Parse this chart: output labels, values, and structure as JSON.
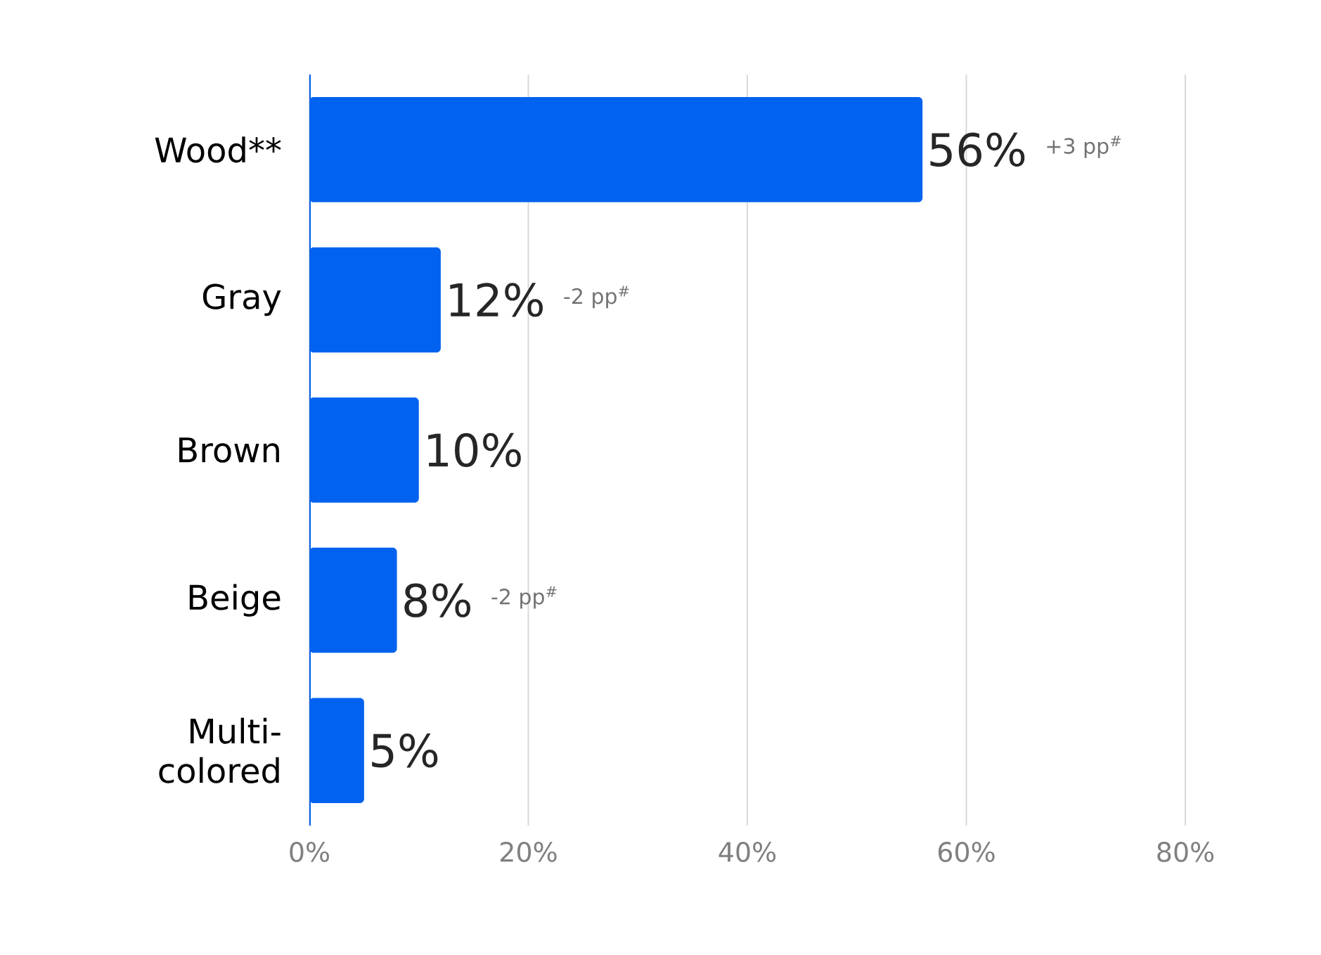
{
  "chart_data": {
    "type": "bar",
    "orientation": "horizontal",
    "categories": [
      "Wood**",
      "Gray",
      "Brown",
      "Beige",
      "Multi-colored"
    ],
    "values": [
      56,
      12,
      10,
      8,
      5
    ],
    "value_labels": [
      "56%",
      "12%",
      "10%",
      "8%",
      "5%"
    ],
    "color": "#0062ee",
    "xlim": [
      0,
      80
    ],
    "xticks": [
      {
        "value": 0,
        "label": "0%"
      },
      {
        "value": 20,
        "label": "20%"
      },
      {
        "value": 40,
        "label": "40%"
      },
      {
        "value": 60,
        "label": "60%"
      },
      {
        "value": 80,
        "label": "80%"
      }
    ],
    "grid": "x",
    "annotations": [
      "+3 pp$^{#}$",
      "-2 pp$^{#}$",
      "-2 pp$^{#}$"
    ]
  }
}
